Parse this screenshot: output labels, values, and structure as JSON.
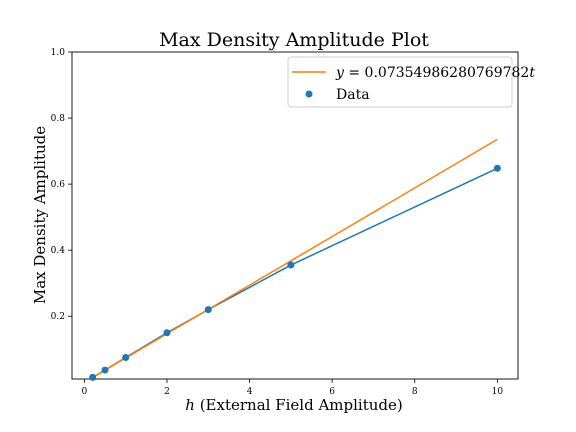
{
  "chart_data": {
    "type": "scatter",
    "title": "Max Density Amplitude Plot",
    "xlabel": "h (External Field Amplitude)",
    "xlabel_italic": "h",
    "xlabel_rest": " (External Field Amplitude)",
    "ylabel": "Max Density Amplitude",
    "xlim": [
      -0.3,
      10.5
    ],
    "ylim": [
      0.01,
      1.0
    ],
    "xticks": [
      0,
      2,
      4,
      6,
      8,
      10
    ],
    "yticks": [
      0.2,
      0.4,
      0.6,
      0.8,
      1.0
    ],
    "ytick_labels": [
      "0.2",
      "0.4",
      "0.6",
      "0.8",
      "1.0"
    ],
    "grid": false,
    "legend_position": "top-right",
    "series": [
      {
        "name": "Data",
        "kind": "scatter+line",
        "color": "#1f77b4",
        "x": [
          0.2,
          0.5,
          1,
          2,
          3,
          5,
          10
        ],
        "y": [
          0.015,
          0.037,
          0.075,
          0.15,
          0.22,
          0.355,
          0.648
        ]
      },
      {
        "name": "y = 0.07354986280769782t",
        "kind": "line",
        "color": "#ff7f0e",
        "x": [
          0.2,
          10
        ],
        "y": [
          0.0147,
          0.7355
        ],
        "slope": 0.07354986280769782
      }
    ],
    "legend": {
      "fit_label_prefix": "y",
      "fit_label_eq": " = 0.07354986280769782",
      "fit_label_var": "t",
      "data_label": "Data"
    }
  }
}
